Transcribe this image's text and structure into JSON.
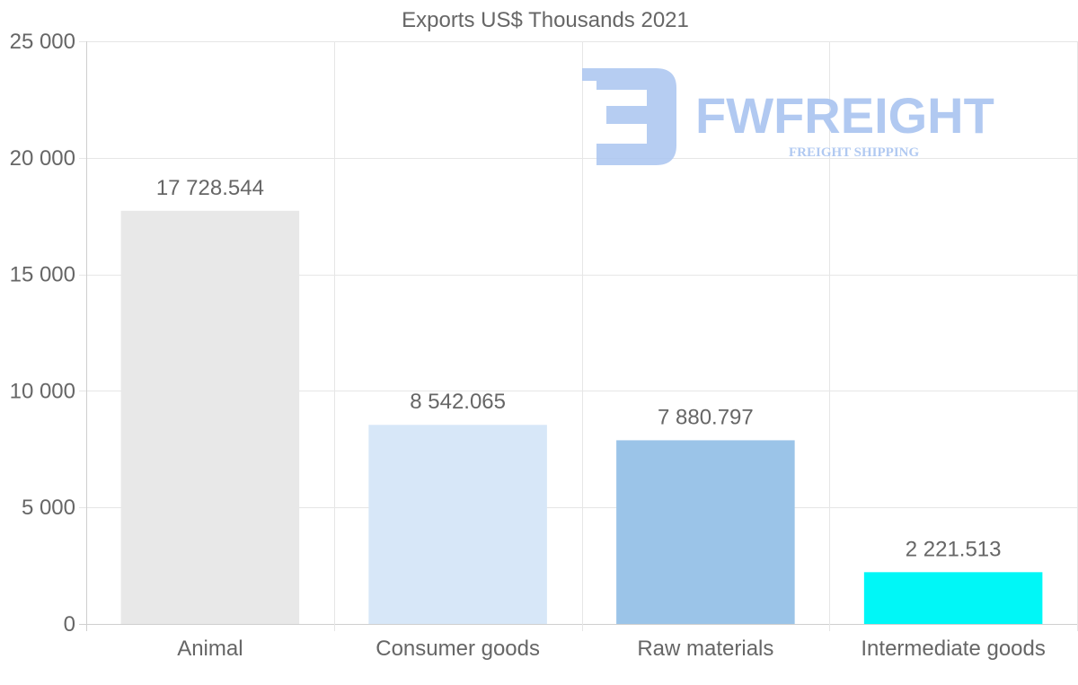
{
  "chart_data": {
    "type": "bar",
    "title": "Exports US$ Thousands 2021",
    "categories": [
      "Animal",
      "Consumer goods",
      "Raw materials",
      "Intermediate goods"
    ],
    "values": [
      17728.544,
      8542.065,
      7880.797,
      2221.513
    ],
    "value_labels": [
      "17 728.544",
      "8 542.065",
      "7 880.797",
      "2 221.513"
    ],
    "colors": [
      "#e8e8e8",
      "#d7e7f8",
      "#9bc4e8",
      "#00f7f7"
    ],
    "ylim": [
      0,
      25000
    ],
    "yticks": [
      0,
      5000,
      10000,
      15000,
      20000,
      25000
    ],
    "ytick_labels": [
      "0",
      "5 000",
      "10 000",
      "15 000",
      "20 000",
      "25 000"
    ],
    "xlabel": "",
    "ylabel": "",
    "grid": true
  },
  "watermark": {
    "brand": "FWFREIGHT",
    "tagline": "FREIGHT SHIPPING",
    "color": "#a9c4f0"
  }
}
